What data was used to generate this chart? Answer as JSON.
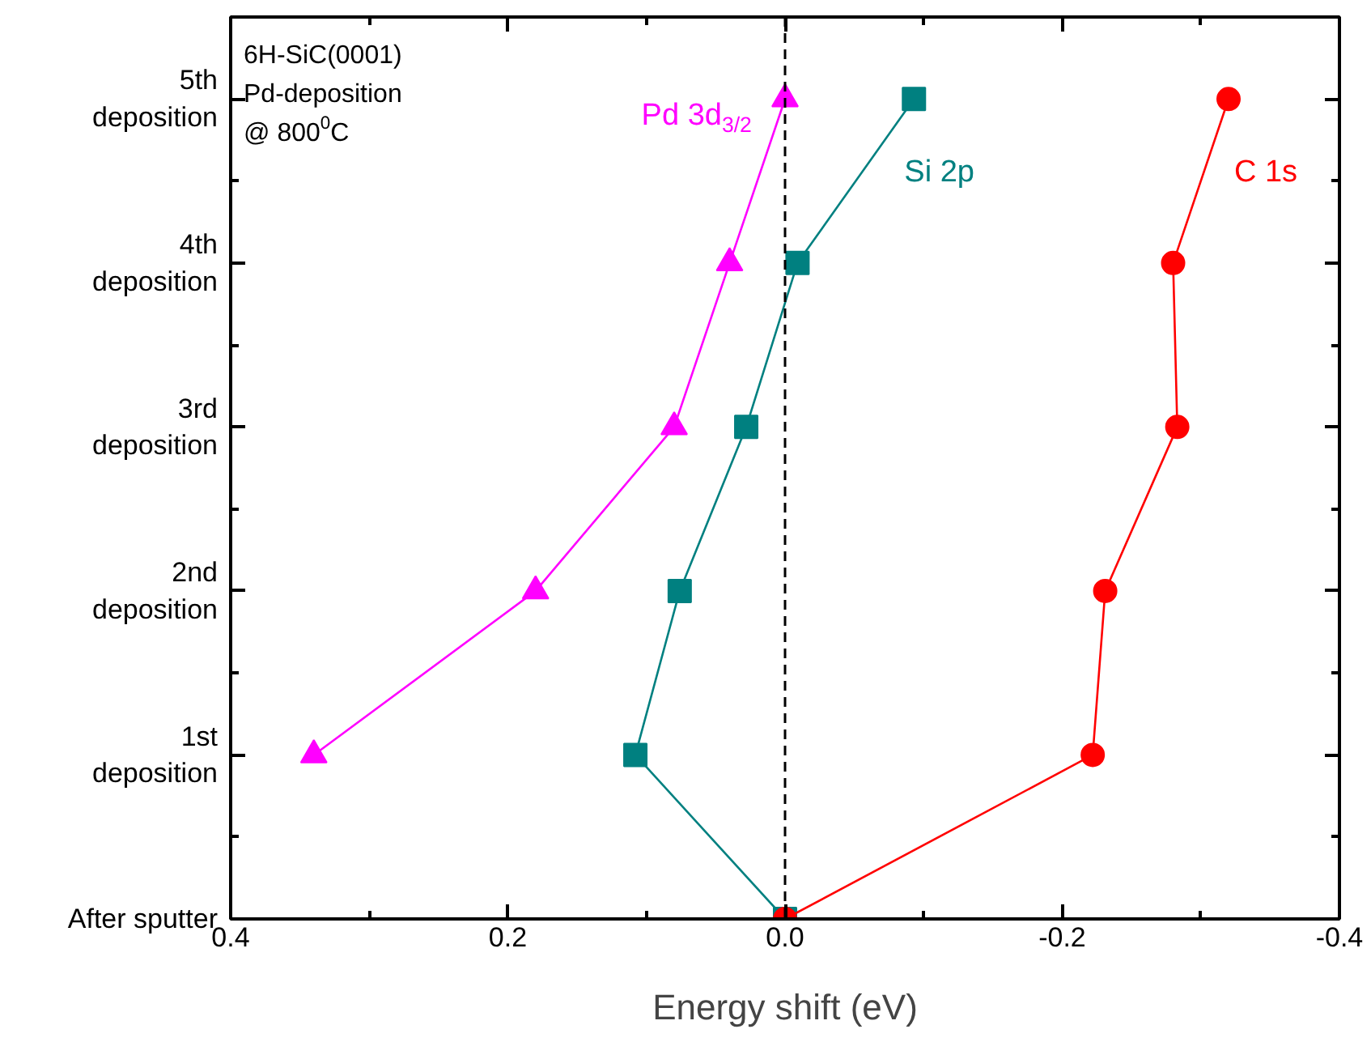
{
  "chart_data": {
    "type": "line",
    "xlabel": "Energy shift (eV)",
    "xlim": [
      0.4,
      -0.4
    ],
    "xticks": [
      0.4,
      {
        "value": 0.3,
        "label": null
      },
      {
        "value": 0.2,
        "label": "0.2"
      },
      {
        "value": 0.1,
        "label": null
      },
      {
        "value": 0.0,
        "label": "0.0"
      },
      {
        "value": -0.1,
        "label": null
      },
      -0.2,
      {
        "value": -0.3,
        "label": null
      },
      -0.4
    ],
    "ylim": [
      0,
      5.5
    ],
    "yticks": [
      {
        "value": 0,
        "label": "After sputter"
      },
      {
        "value": 0.5,
        "label": null
      },
      {
        "value": 1,
        "label": "1st\ndeposition"
      },
      {
        "value": 1.5,
        "label": null
      },
      {
        "value": 2,
        "label": "2nd\ndeposition"
      },
      {
        "value": 2.5,
        "label": null
      },
      {
        "value": 3,
        "label": "3rd\ndeposition"
      },
      {
        "value": 3.5,
        "label": null
      },
      {
        "value": 4,
        "label": "4th\ndeposition"
      },
      {
        "value": 4.5,
        "label": null
      },
      {
        "value": 5,
        "label": "5th\ndeposition"
      }
    ],
    "series": [
      {
        "name": "Pd 3d$_{3/2}$",
        "color": "#ff00ff",
        "marker": "triangle",
        "x": [
          0.34,
          0.18,
          0.08,
          0.04,
          0.0
        ],
        "values": [
          1,
          2,
          3,
          4,
          5
        ]
      },
      {
        "name": "Si 2p",
        "color": "#008080",
        "marker": "square",
        "x": [
          0.0,
          0.108,
          0.076,
          0.028,
          -0.009,
          -0.093
        ],
        "values": [
          0,
          1,
          2,
          3,
          4,
          5
        ]
      },
      {
        "name": "C 1s",
        "color": "#ff0000",
        "marker": "circle",
        "x": [
          0.0,
          -0.222,
          -0.231,
          -0.283,
          -0.28,
          -0.32
        ],
        "values": [
          0,
          1,
          2,
          3,
          4,
          5
        ]
      }
    ],
    "ref_lines": [
      {
        "axis": "x",
        "value": 0.0,
        "color": "#000000",
        "line_style": "dashed"
      }
    ],
    "annotations": [
      "6H-SiC(0001)",
      "Pd-deposition",
      "@ 800$^{0}$C"
    ],
    "grid": false,
    "line_style": "solid"
  }
}
